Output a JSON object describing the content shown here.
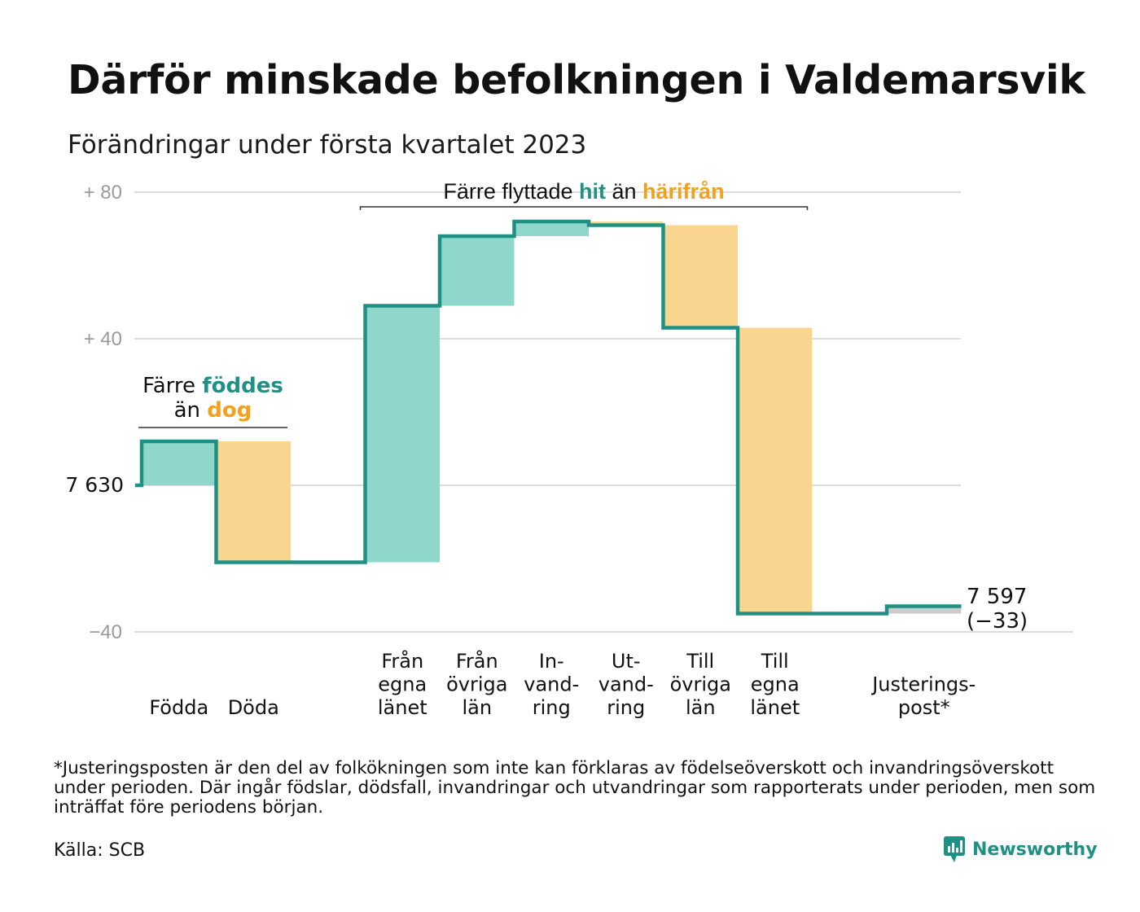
{
  "title": "Därför minskade befolkningen i Valdemarsvik",
  "subtitle": "Förändringar under första kvartalet 2023",
  "chart_data": {
    "type": "waterfall",
    "baseline_label": "7 630",
    "start_population": 7630,
    "yaxis": {
      "range": [
        -40,
        80
      ],
      "ticks": [
        {
          "value": 80,
          "label": "+ 80"
        },
        {
          "value": 40,
          "label": "+ 40"
        },
        {
          "value": 0,
          "label": "7 630"
        },
        {
          "value": -40,
          "label": "−40"
        }
      ]
    },
    "steps": [
      {
        "category": "Födda",
        "label_lines": [
          "Födda"
        ],
        "change": 12,
        "kind": "increase"
      },
      {
        "category": "Döda",
        "label_lines": [
          "Döda"
        ],
        "change": -33,
        "kind": "decrease"
      },
      {
        "category": "",
        "label_lines": [],
        "change": 0,
        "kind": "none"
      },
      {
        "category": "Från egna länet",
        "label_lines": [
          "Från",
          "egna",
          "länet"
        ],
        "change": 70,
        "kind": "increase"
      },
      {
        "category": "Från övriga län",
        "label_lines": [
          "Från",
          "övriga",
          "län"
        ],
        "change": 19,
        "kind": "increase"
      },
      {
        "category": "Invandring",
        "label_lines": [
          "In-",
          "vand-",
          "ring"
        ],
        "change": 4,
        "kind": "increase"
      },
      {
        "category": "Utvandring",
        "label_lines": [
          "Ut-",
          "vand-",
          "ring"
        ],
        "change": -1,
        "kind": "decrease"
      },
      {
        "category": "Till övriga län",
        "label_lines": [
          "Till",
          "övriga",
          "län"
        ],
        "change": -28,
        "kind": "decrease"
      },
      {
        "category": "Till egna länet",
        "label_lines": [
          "Till",
          "egna",
          "länet"
        ],
        "change": -78,
        "kind": "decrease"
      },
      {
        "category": "",
        "label_lines": [],
        "change": 0,
        "kind": "none"
      },
      {
        "category": "Justeringspost*",
        "label_lines": [
          "Justerings-",
          "post*"
        ],
        "change": 2,
        "kind": "adjustment"
      }
    ],
    "end_label": {
      "line1": "7 597",
      "line2": "(−33)"
    },
    "annotations": [
      {
        "id": "births",
        "line1_prefix": "Färre ",
        "line1_highlight": "föddes",
        "line2_prefix": "än ",
        "line2_highlight": "dog"
      },
      {
        "id": "moves",
        "prefix": "Färre flyttade ",
        "highlight1": "hit",
        "middle": " än ",
        "highlight2": "härifrån"
      }
    ],
    "colors": {
      "line": "#1e9184",
      "increase": "#8fd6cb",
      "decrease": "#fad590",
      "adjustment": "#cccccc",
      "highlight_green": "#1e9184",
      "highlight_orange": "#f0a21f",
      "grid": "#dddddd"
    }
  },
  "footnote": "*Justeringsposten är den del av folkökningen som inte kan förklaras av födelseöverskott och invandringsöverskott under perioden. Där ingår födslar, dödsfall, invandringar och utvandringar som rapporterats under perioden, men som inträffat före periodens början.",
  "source": "Källa: SCB",
  "brand": {
    "name": "Newsworthy",
    "icon": "newsworthy-logo-icon"
  }
}
